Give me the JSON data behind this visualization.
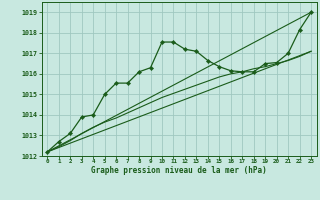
{
  "title": "Graphe pression niveau de la mer (hPa)",
  "bg_color": "#c8e8e0",
  "grid_color": "#a0c8c0",
  "line_color": "#1a5c1a",
  "xlim": [
    -0.5,
    23.5
  ],
  "ylim": [
    1012,
    1019.5
  ],
  "yticks": [
    1012,
    1013,
    1014,
    1015,
    1016,
    1017,
    1018,
    1019
  ],
  "xticks": [
    0,
    1,
    2,
    3,
    4,
    5,
    6,
    7,
    8,
    9,
    10,
    11,
    12,
    13,
    14,
    15,
    16,
    17,
    18,
    19,
    20,
    21,
    22,
    23
  ],
  "series1_x": [
    0,
    1,
    2,
    3,
    4,
    5,
    6,
    7,
    8,
    9,
    10,
    11,
    12,
    13,
    14,
    15,
    16,
    17,
    18,
    19,
    20,
    21,
    22,
    23
  ],
  "series1_y": [
    1012.2,
    1012.7,
    1013.1,
    1013.9,
    1014.0,
    1015.0,
    1015.55,
    1015.55,
    1016.1,
    1016.3,
    1017.55,
    1017.55,
    1017.2,
    1017.1,
    1016.65,
    1016.35,
    1016.15,
    1016.1,
    1016.1,
    1016.5,
    1016.55,
    1017.0,
    1018.15,
    1019.0
  ],
  "series2_x": [
    0,
    1,
    2,
    3,
    4,
    5,
    6,
    7,
    8,
    9,
    10,
    11,
    12,
    13,
    14,
    15,
    16,
    17,
    18,
    19,
    20,
    21,
    22,
    23
  ],
  "series2_y": [
    1012.2,
    1012.45,
    1012.75,
    1013.1,
    1013.4,
    1013.65,
    1013.85,
    1014.1,
    1014.35,
    1014.6,
    1014.85,
    1015.05,
    1015.25,
    1015.45,
    1015.65,
    1015.85,
    1016.0,
    1016.1,
    1016.25,
    1016.35,
    1016.5,
    1016.65,
    1016.85,
    1017.1
  ],
  "series3_x": [
    0,
    23
  ],
  "series3_y": [
    1012.2,
    1019.0
  ],
  "series4_x": [
    0,
    23
  ],
  "series4_y": [
    1012.2,
    1017.1
  ]
}
